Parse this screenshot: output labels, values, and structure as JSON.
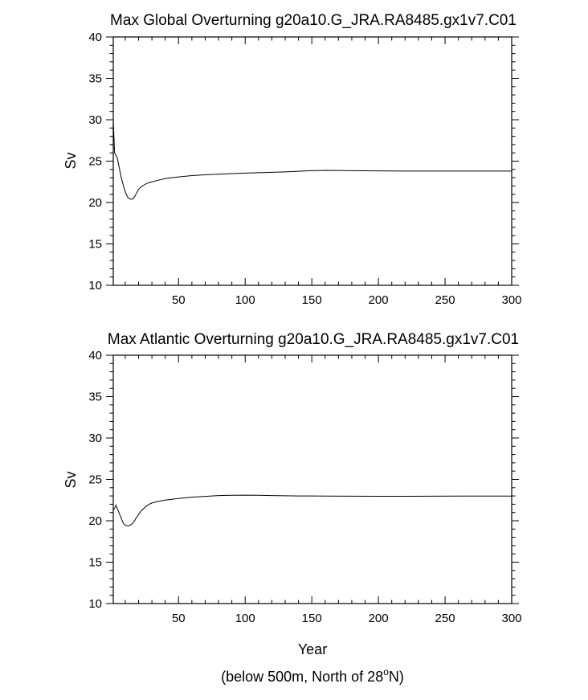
{
  "footnote": {
    "prefix": "(below 500m, North of 28",
    "sup": "o",
    "suffix": "N)"
  },
  "chart_data": [
    {
      "type": "line",
      "title": "Max Global Overturning g20a10.G_JRA.RA8485.gx1v7.C01",
      "xlabel": "",
      "ylabel": "Sv",
      "xlim": [
        1,
        300
      ],
      "ylim": [
        10,
        40
      ],
      "xticks": [
        50,
        100,
        150,
        200,
        250,
        300
      ],
      "yticks": [
        10,
        15,
        20,
        25,
        30,
        35,
        40
      ],
      "grid": false,
      "series": [
        {
          "x": [
            1,
            2,
            3,
            4,
            5,
            6,
            7,
            8,
            9,
            10,
            11,
            12,
            13,
            14,
            15,
            16,
            17,
            18,
            19,
            20,
            22,
            24,
            26,
            28,
            30,
            35,
            40,
            45,
            50,
            60,
            70,
            80,
            90,
            100,
            110,
            120,
            130,
            140,
            150,
            160,
            170,
            180,
            190,
            200,
            220,
            240,
            260,
            280,
            300
          ],
          "y": [
            30.0,
            26.0,
            25.7,
            25.4,
            24.6,
            23.8,
            23.0,
            22.4,
            21.8,
            21.3,
            20.9,
            20.6,
            20.5,
            20.4,
            20.4,
            20.5,
            20.7,
            21.0,
            21.3,
            21.6,
            21.9,
            22.1,
            22.3,
            22.4,
            22.5,
            22.7,
            22.9,
            23.0,
            23.1,
            23.25,
            23.35,
            23.42,
            23.5,
            23.55,
            23.6,
            23.65,
            23.7,
            23.78,
            23.85,
            23.88,
            23.87,
            23.85,
            23.83,
            23.82,
            23.8,
            23.8,
            23.8,
            23.8,
            23.8
          ]
        }
      ]
    },
    {
      "type": "line",
      "title": "Max Atlantic Overturning g20a10.G_JRA.RA8485.gx1v7.C01",
      "xlabel": "Year",
      "ylabel": "Sv",
      "xlim": [
        1,
        300
      ],
      "ylim": [
        10,
        40
      ],
      "xticks": [
        50,
        100,
        150,
        200,
        250,
        300
      ],
      "yticks": [
        10,
        15,
        20,
        25,
        30,
        35,
        40
      ],
      "grid": false,
      "series": [
        {
          "x": [
            1,
            2,
            3,
            4,
            5,
            6,
            7,
            8,
            9,
            10,
            11,
            12,
            13,
            14,
            15,
            16,
            17,
            18,
            19,
            20,
            22,
            24,
            26,
            28,
            30,
            35,
            40,
            45,
            50,
            60,
            70,
            80,
            90,
            100,
            110,
            120,
            130,
            140,
            150,
            160,
            180,
            200,
            220,
            240,
            260,
            280,
            300
          ],
          "y": [
            21.3,
            21.5,
            21.9,
            21.5,
            21.1,
            20.7,
            20.3,
            19.9,
            19.6,
            19.5,
            19.4,
            19.4,
            19.4,
            19.5,
            19.6,
            19.8,
            20.0,
            20.3,
            20.5,
            20.8,
            21.2,
            21.5,
            21.8,
            22.0,
            22.15,
            22.35,
            22.5,
            22.6,
            22.7,
            22.85,
            22.95,
            23.05,
            23.08,
            23.1,
            23.08,
            23.05,
            23.02,
            23.0,
            23.0,
            22.98,
            22.97,
            22.96,
            22.96,
            22.97,
            22.98,
            22.98,
            22.98
          ]
        }
      ]
    }
  ]
}
